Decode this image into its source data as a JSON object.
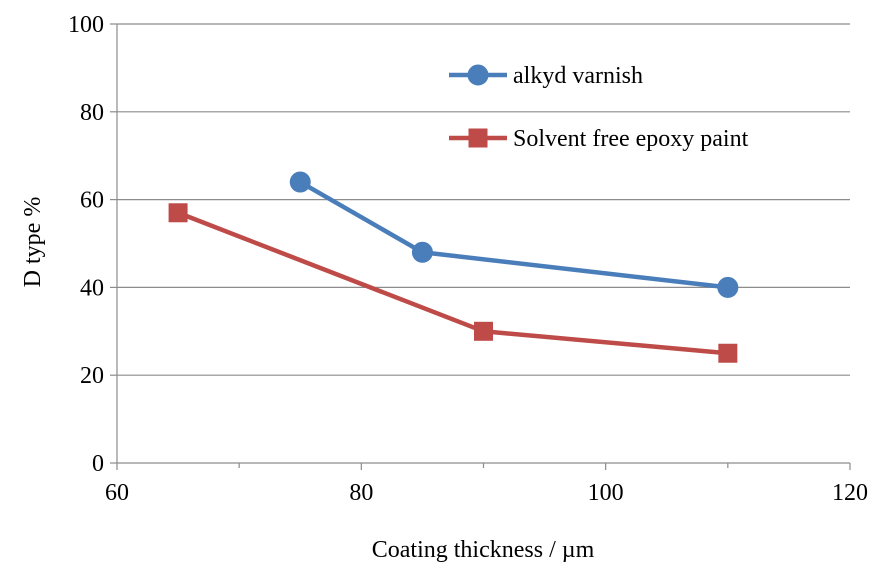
{
  "chart_data": {
    "type": "line",
    "title": "",
    "xlabel": "Coating thickness / µm",
    "ylabel": "D type %",
    "xlim": [
      60,
      120
    ],
    "ylim": [
      0,
      100
    ],
    "x_ticks": [
      60,
      80,
      100,
      120
    ],
    "x_minor_ticks": [
      70,
      90,
      110
    ],
    "y_ticks": [
      0,
      20,
      40,
      60,
      80,
      100
    ],
    "x_tick_labels": [
      "60",
      "80",
      "100",
      "120"
    ],
    "y_tick_labels": [
      "0",
      "20",
      "40",
      "60",
      "80",
      "100"
    ],
    "grid": "horizontal",
    "legend_position": "top-right",
    "series": [
      {
        "name": "alkyd varnish",
        "color": "#4a7ebb",
        "marker": "circle",
        "x": [
          75,
          85,
          110
        ],
        "y": [
          64,
          48,
          40
        ]
      },
      {
        "name": "Solvent free epoxy paint",
        "color": "#be4b48",
        "marker": "square",
        "x": [
          65,
          90,
          110
        ],
        "y": [
          57,
          30,
          25
        ]
      }
    ]
  }
}
